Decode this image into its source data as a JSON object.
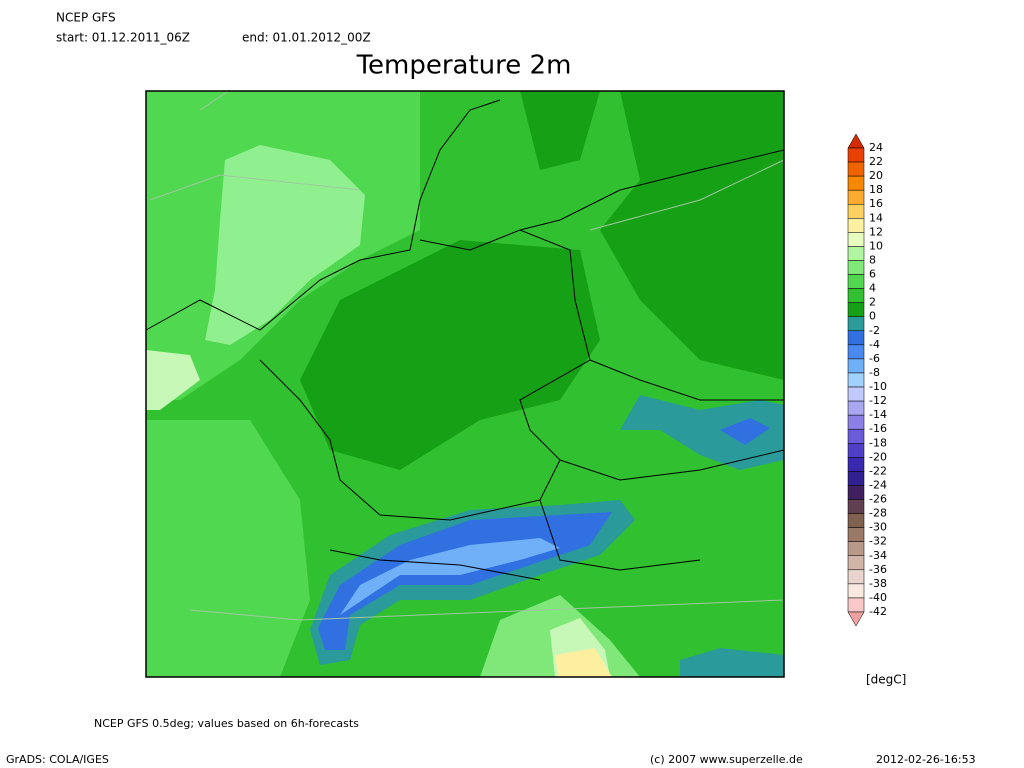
{
  "header": {
    "model": "NCEP GFS",
    "start": "start: 01.12.2011_06Z",
    "end": "end: 01.01.2012_00Z"
  },
  "title": "Temperature 2m",
  "colorbar": {
    "levels": [
      24,
      22,
      20,
      18,
      16,
      14,
      12,
      10,
      8,
      6,
      4,
      2,
      0,
      -2,
      -4,
      -6,
      -8,
      -10,
      -12,
      -14,
      -16,
      -18,
      -20,
      -22,
      -24,
      -26,
      -28,
      -30,
      -32,
      -34,
      -36,
      -38,
      -40,
      -42
    ],
    "colors": [
      "#d42a00",
      "#e84000",
      "#f06400",
      "#f88800",
      "#fcaa30",
      "#fcd060",
      "#fcf0a0",
      "#e8fcc0",
      "#b0f4a0",
      "#80e878",
      "#50d850",
      "#30c030",
      "#16a016",
      "#2a9a9a",
      "#3070e0",
      "#4a8af0",
      "#70b0f8",
      "#a0d0fc",
      "#c0c8fc",
      "#a8a8f0",
      "#8c80e8",
      "#6a5cd8",
      "#5040c8",
      "#3a28b0",
      "#302090",
      "#402060",
      "#604050",
      "#806050",
      "#9a7868",
      "#b89888",
      "#d0b4a8",
      "#e8d4cc",
      "#f8e8e0",
      "#f8c8c8",
      "#f0a0a0"
    ],
    "unit": "[degC]"
  },
  "footer": {
    "source": "NCEP GFS 0.5deg; values based on 6h-forecasts",
    "grads": "GrADS: COLA/IGES",
    "copyright": "(c) 2007 www.superzelle.de",
    "timestamp": "2012-02-26-16:53"
  }
}
